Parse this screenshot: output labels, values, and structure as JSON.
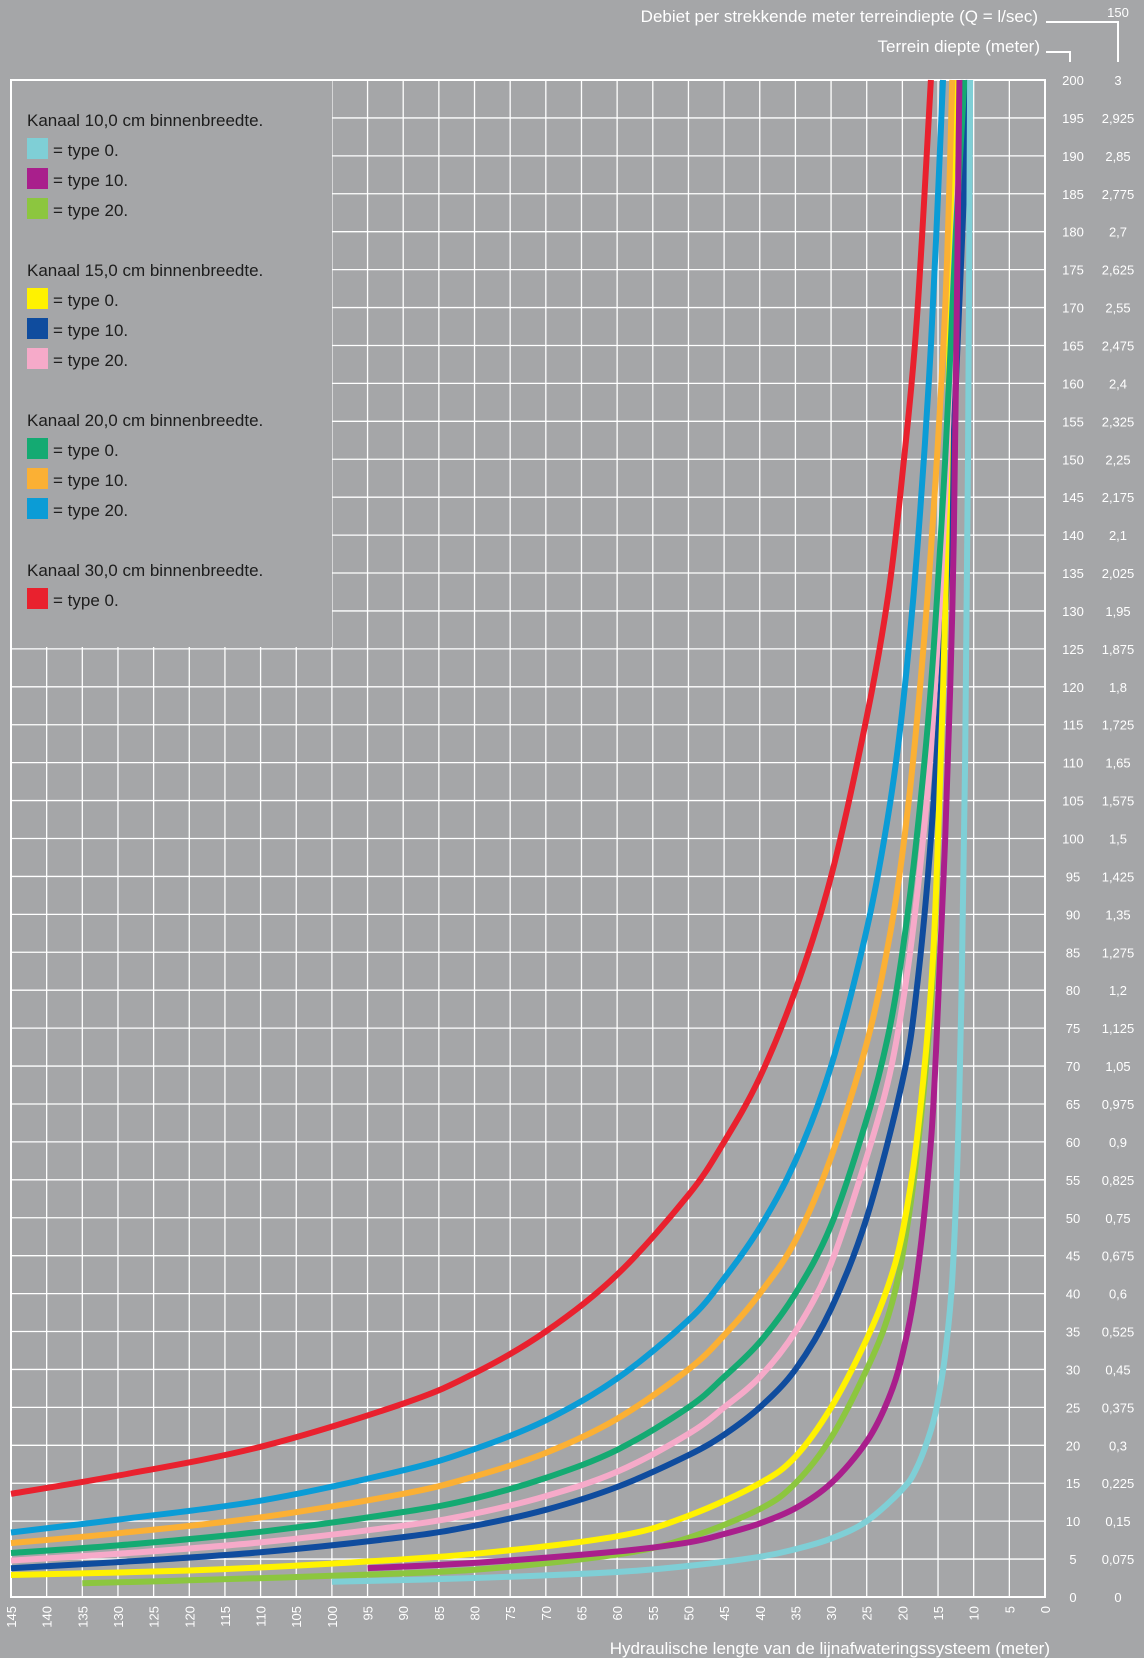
{
  "chart_data": {
    "type": "line",
    "xlabel": "Hydraulische lengte van de lijnafwateringssysteem (meter)",
    "ylabel_right": "Terrein diepte (meter)",
    "ylabel_right2": "Debiet per strekkende meter terreindiepte  (Q = l/sec)",
    "secondary_axis_top_value": "150",
    "x_reversed": true,
    "xlim": [
      0,
      145
    ],
    "ylim": [
      0,
      200
    ],
    "x_ticks": [
      "145",
      "140",
      "135",
      "130",
      "125",
      "120",
      "115",
      "110",
      "105",
      "100",
      "95",
      "90",
      "85",
      "80",
      "75",
      "70",
      "65",
      "60",
      "55",
      "50",
      "45",
      "40",
      "35",
      "30",
      "25",
      "20",
      "15",
      "10",
      "5",
      "0"
    ],
    "y_ticks": [
      {
        "depth": "200",
        "q": "3"
      },
      {
        "depth": "195",
        "q": "2,925"
      },
      {
        "depth": "190",
        "q": "2,85"
      },
      {
        "depth": "185",
        "q": "2,775"
      },
      {
        "depth": "180",
        "q": "2,7"
      },
      {
        "depth": "175",
        "q": "2,625"
      },
      {
        "depth": "170",
        "q": "2,55"
      },
      {
        "depth": "165",
        "q": "2,475"
      },
      {
        "depth": "160",
        "q": "2,4"
      },
      {
        "depth": "155",
        "q": "2,325"
      },
      {
        "depth": "150",
        "q": "2,25"
      },
      {
        "depth": "145",
        "q": "2,175"
      },
      {
        "depth": "140",
        "q": "2,1"
      },
      {
        "depth": "135",
        "q": "2,025"
      },
      {
        "depth": "130",
        "q": "1,95"
      },
      {
        "depth": "125",
        "q": "1,875"
      },
      {
        "depth": "120",
        "q": "1,8"
      },
      {
        "depth": "115",
        "q": "1,725"
      },
      {
        "depth": "110",
        "q": "1,65"
      },
      {
        "depth": "105",
        "q": "1,575"
      },
      {
        "depth": "100",
        "q": "1,5"
      },
      {
        "depth": "95",
        "q": "1,425"
      },
      {
        "depth": "90",
        "q": "1,35"
      },
      {
        "depth": "85",
        "q": "1,275"
      },
      {
        "depth": "80",
        "q": "1,2"
      },
      {
        "depth": "75",
        "q": "1,125"
      },
      {
        "depth": "70",
        "q": "1,05"
      },
      {
        "depth": "65",
        "q": "0,975"
      },
      {
        "depth": "60",
        "q": "0,9"
      },
      {
        "depth": "55",
        "q": "0,825"
      },
      {
        "depth": "50",
        "q": "0,75"
      },
      {
        "depth": "45",
        "q": "0,675"
      },
      {
        "depth": "40",
        "q": "0,6"
      },
      {
        "depth": "35",
        "q": "0,525"
      },
      {
        "depth": "30",
        "q": "0,45"
      },
      {
        "depth": "25",
        "q": "0,375"
      },
      {
        "depth": "20",
        "q": "0,3"
      },
      {
        "depth": "15",
        "q": "0,225"
      },
      {
        "depth": "10",
        "q": "0,15"
      },
      {
        "depth": "5",
        "q": "0,075"
      },
      {
        "depth": "0",
        "q": "0"
      }
    ],
    "grid": true,
    "legend_placement": "top-left",
    "legend_groups": [
      {
        "title": "Kanaal 10,0 cm binnenbreedte.",
        "items": [
          {
            "label": "= type 0.",
            "color": "#7fcfd6"
          },
          {
            "label": "= type 10.",
            "color": "#a91f8c"
          },
          {
            "label": "= type 20.",
            "color": "#8cc63f"
          }
        ]
      },
      {
        "title": "Kanaal 15,0 cm binnenbreedte.",
        "items": [
          {
            "label": "= type 0.",
            "color": "#fff200"
          },
          {
            "label": "= type 10.",
            "color": "#0f4c9e"
          },
          {
            "label": "= type 20.",
            "color": "#f6aac9"
          }
        ]
      },
      {
        "title": "Kanaal 20,0 cm binnenbreedte.",
        "items": [
          {
            "label": "= type 0.",
            "color": "#14aa72"
          },
          {
            "label": "= type 10.",
            "color": "#fbb034"
          },
          {
            "label": "= type 20.",
            "color": "#0b9cd6"
          }
        ]
      },
      {
        "title": "Kanaal 30,0 cm binnenbreedte.",
        "items": [
          {
            "label": "= type 0.",
            "color": "#e9212e"
          }
        ]
      }
    ],
    "series": [
      {
        "color": "#8cc63f",
        "points": [
          [
            135,
            1.8
          ],
          [
            120,
            2.2
          ],
          [
            100,
            2.8
          ],
          [
            80,
            3.6
          ],
          [
            60,
            5.6
          ],
          [
            50,
            7.8
          ],
          [
            40,
            11.6
          ],
          [
            35,
            15
          ],
          [
            30,
            21
          ],
          [
            25,
            30
          ],
          [
            22,
            37
          ],
          [
            20,
            45
          ],
          [
            18,
            58
          ],
          [
            16,
            78
          ],
          [
            15,
            100
          ],
          [
            14,
            140
          ],
          [
            13.5,
            160
          ],
          [
            12.8,
            200
          ]
        ]
      },
      {
        "color": "#0f4c9e",
        "points": [
          [
            145,
            3.8
          ],
          [
            130,
            4.6
          ],
          [
            110,
            5.9
          ],
          [
            90,
            7.9
          ],
          [
            80,
            9.4
          ],
          [
            70,
            11.5
          ],
          [
            60,
            14.5
          ],
          [
            50,
            18.7
          ],
          [
            45,
            21.4
          ],
          [
            40,
            25
          ],
          [
            35,
            30
          ],
          [
            30,
            38
          ],
          [
            25,
            50
          ],
          [
            20,
            68
          ],
          [
            18,
            80
          ],
          [
            16,
            100
          ],
          [
            14,
            130
          ],
          [
            12.5,
            160
          ],
          [
            10.7,
            200
          ]
        ]
      },
      {
        "color": "#fff200",
        "points": [
          [
            145,
            2.9
          ],
          [
            120,
            3.5
          ],
          [
            100,
            4.4
          ],
          [
            80,
            5.7
          ],
          [
            60,
            8
          ],
          [
            50,
            10.7
          ],
          [
            40,
            15
          ],
          [
            35,
            18.5
          ],
          [
            30,
            25
          ],
          [
            25,
            34
          ],
          [
            22,
            41
          ],
          [
            20,
            48
          ],
          [
            18,
            60
          ],
          [
            16,
            80
          ],
          [
            15,
            100
          ],
          [
            14,
            130
          ],
          [
            13.5,
            160
          ],
          [
            12.8,
            200
          ]
        ]
      },
      {
        "color": "#f6aac9",
        "points": [
          [
            145,
            4.8
          ],
          [
            130,
            5.7
          ],
          [
            110,
            7.2
          ],
          [
            90,
            9.4
          ],
          [
            80,
            11
          ],
          [
            70,
            13.3
          ],
          [
            60,
            16.5
          ],
          [
            50,
            21.5
          ],
          [
            45,
            25
          ],
          [
            40,
            29
          ],
          [
            35,
            35
          ],
          [
            30,
            44
          ],
          [
            25,
            58
          ],
          [
            22,
            68
          ],
          [
            20,
            78
          ],
          [
            18,
            92
          ],
          [
            16,
            112
          ],
          [
            14,
            145
          ],
          [
            12.8,
            175
          ],
          [
            11.5,
            200
          ]
        ]
      },
      {
        "color": "#14aa72",
        "points": [
          [
            145,
            5.8
          ],
          [
            130,
            6.8
          ],
          [
            110,
            8.6
          ],
          [
            90,
            11.2
          ],
          [
            80,
            13
          ],
          [
            70,
            15.7
          ],
          [
            60,
            19.4
          ],
          [
            50,
            25
          ],
          [
            45,
            29
          ],
          [
            40,
            33.6
          ],
          [
            35,
            40
          ],
          [
            30,
            49
          ],
          [
            25,
            63
          ],
          [
            22,
            74
          ],
          [
            20,
            85
          ],
          [
            18,
            100
          ],
          [
            16,
            120
          ],
          [
            14,
            150
          ],
          [
            12.5,
            180
          ],
          [
            11.3,
            200
          ]
        ]
      },
      {
        "color": "#fbb034",
        "points": [
          [
            145,
            7.1
          ],
          [
            130,
            8.4
          ],
          [
            110,
            10.5
          ],
          [
            90,
            13.6
          ],
          [
            80,
            15.9
          ],
          [
            70,
            19
          ],
          [
            60,
            23.5
          ],
          [
            50,
            30
          ],
          [
            45,
            34.5
          ],
          [
            40,
            40
          ],
          [
            35,
            47
          ],
          [
            30,
            58
          ],
          [
            25,
            73
          ],
          [
            22,
            86
          ],
          [
            20,
            98
          ],
          [
            18,
            115
          ],
          [
            16,
            138
          ],
          [
            14,
            170
          ],
          [
            13,
            200
          ]
        ]
      },
      {
        "color": "#0b9cd6",
        "points": [
          [
            145,
            8.5
          ],
          [
            130,
            10.2
          ],
          [
            110,
            12.7
          ],
          [
            90,
            16.7
          ],
          [
            80,
            19.5
          ],
          [
            70,
            23.3
          ],
          [
            60,
            28.8
          ],
          [
            50,
            36.5
          ],
          [
            45,
            42
          ],
          [
            40,
            48.7
          ],
          [
            35,
            57.5
          ],
          [
            30,
            70
          ],
          [
            25,
            88
          ],
          [
            22,
            103
          ],
          [
            20,
            117
          ],
          [
            18,
            137
          ],
          [
            16,
            165
          ],
          [
            14.3,
            200
          ]
        ]
      },
      {
        "color": "#e9212e",
        "points": [
          [
            145,
            13.6
          ],
          [
            130,
            16
          ],
          [
            110,
            19.8
          ],
          [
            90,
            25.5
          ],
          [
            80,
            29.5
          ],
          [
            70,
            35
          ],
          [
            60,
            42.5
          ],
          [
            50,
            53
          ],
          [
            45,
            60
          ],
          [
            40,
            68.5
          ],
          [
            35,
            80
          ],
          [
            30,
            95
          ],
          [
            25,
            116
          ],
          [
            22,
            132
          ],
          [
            20,
            148
          ],
          [
            18,
            168
          ],
          [
            16,
            200
          ]
        ]
      },
      {
        "color": "#a91f8c",
        "points": [
          [
            95,
            3.8
          ],
          [
            80,
            4.5
          ],
          [
            60,
            6
          ],
          [
            50,
            7.2
          ],
          [
            45,
            8.3
          ],
          [
            40,
            9.7
          ],
          [
            35,
            11.7
          ],
          [
            30,
            15
          ],
          [
            25,
            20.5
          ],
          [
            22,
            26
          ],
          [
            20,
            32
          ],
          [
            18,
            42
          ],
          [
            16,
            60
          ],
          [
            15,
            78
          ],
          [
            14,
            100
          ],
          [
            13,
            130
          ],
          [
            12.5,
            160
          ],
          [
            12,
            200
          ]
        ]
      },
      {
        "color": "#7fcfd6",
        "points": [
          [
            100,
            2
          ],
          [
            80,
            2.5
          ],
          [
            60,
            3.3
          ],
          [
            50,
            4.1
          ],
          [
            40,
            5.3
          ],
          [
            35,
            6.3
          ],
          [
            30,
            7.7
          ],
          [
            25,
            10
          ],
          [
            20,
            14.2
          ],
          [
            18,
            17
          ],
          [
            16,
            22
          ],
          [
            15,
            26
          ],
          [
            14,
            32
          ],
          [
            13,
            42
          ],
          [
            12.2,
            60
          ],
          [
            11.7,
            80
          ],
          [
            11.2,
            110
          ],
          [
            10.8,
            150
          ],
          [
            10.5,
            200
          ]
        ]
      }
    ]
  }
}
